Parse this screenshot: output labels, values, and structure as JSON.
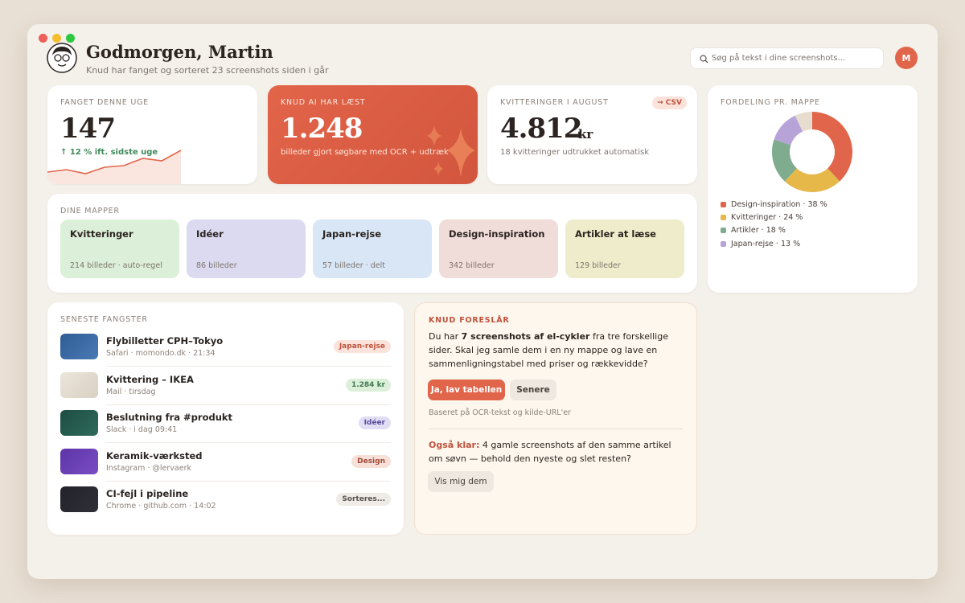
{
  "header": {
    "title": "Godmorgen, Martin",
    "subtitle": "Knud har fanget og sorteret 23 screenshots siden i går",
    "search_placeholder": "Søg på tekst i dine screenshots...",
    "avatar_initial": "M"
  },
  "stats": [
    {
      "label": "FANGET DENNE UGE",
      "value": "147",
      "note": "↑ 12 % ift. sidste uge",
      "sparkline": [
        15,
        18,
        13,
        21,
        23,
        32,
        29,
        42
      ],
      "sparkline_ylim": [
        0,
        50
      ]
    },
    {
      "label": "KNUD AI HAR LÆST",
      "value": "1.248",
      "note": "billeder gjort søgbare med OCR + udtræk"
    },
    {
      "label": "KVITTERINGER I AUGUST",
      "value": "4.812",
      "unit": "kr",
      "badge": "→ CSV",
      "note": "18 kvitteringer udtrukket automatisk"
    }
  ],
  "distribution": {
    "title": "FORDELING PR. MAPPE",
    "slices": [
      {
        "label": "Design-inspiration · 38 %",
        "value": 38,
        "color": "#e0654a"
      },
      {
        "label": "Kvitteringer · 24 %",
        "value": 24,
        "color": "#e6b84a"
      },
      {
        "label": "Artikler · 18 %",
        "value": 18,
        "color": "#7fab8f"
      },
      {
        "label": "Japan-rejse · 13 %",
        "value": 13,
        "color": "#b7a3d8"
      },
      {
        "value": 7,
        "color": "#e6dccf"
      }
    ]
  },
  "folders": {
    "title": "DINE MAPPER",
    "items": [
      {
        "name": "Kvitteringer",
        "meta": "214 billeder · auto-regel"
      },
      {
        "name": "Idéer",
        "meta": "86 billeder"
      },
      {
        "name": "Japan-rejse",
        "meta": "57 billeder · delt"
      },
      {
        "name": "Design-inspiration",
        "meta": "342 billeder"
      },
      {
        "name": "Artikler at læse",
        "meta": "129 billeder"
      }
    ]
  },
  "recent": {
    "title": "SENESTE FANGSTER",
    "items": [
      {
        "title": "Flybilletter CPH–Tokyo",
        "source": "Safari · momondo.dk · 21:34",
        "tag": "Japan-rejse"
      },
      {
        "title": "Kvittering – IKEA",
        "source": "Mail · tirsdag",
        "tag": "1.284 kr"
      },
      {
        "title": "Beslutning fra #produkt",
        "source": "Slack · i dag 09:41",
        "tag": "Idéer"
      },
      {
        "title": "Keramik-værksted",
        "source": "Instagram · @lervaerk",
        "tag": "Design"
      },
      {
        "title": "CI-fejl i pipeline",
        "source": "Chrome · github.com · 14:02",
        "tag": "Sorteres..."
      }
    ]
  },
  "suggestion": {
    "title": "KNUD FORESLÅR",
    "text_before": "Du har ",
    "text_bold": "7 screenshots af el-cykler",
    "text_after": " fra tre forskellige sider. Skal jeg samle dem i en ny mappe og lave en sammenligningstabel med priser og rækkevidde?",
    "primary_button": "Ja, lav tabellen",
    "secondary_button": "Senere",
    "footnote": "Baseret på OCR-tekst og kilde-URL'er",
    "extra_label": "Også klar:",
    "extra_text": " 4 gamle screenshots af den samme artikel om søvn — behold den nyeste og slet resten?",
    "extra_button": "Vis mig dem"
  }
}
